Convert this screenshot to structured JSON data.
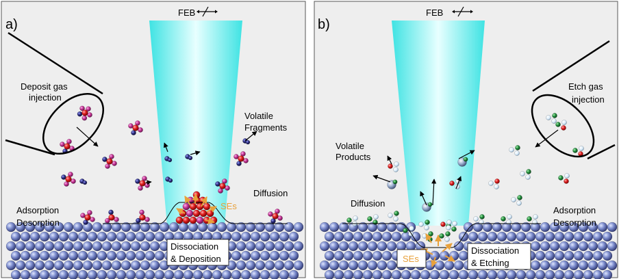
{
  "colors": {
    "panel_bg": "#eeeeee",
    "beam_edge": "#40e6e6",
    "beam_center": "#e6ffff",
    "substrate_ball": "#6a7bb8",
    "red_atom": "#d01818",
    "magenta_atom": "#c0308e",
    "navy_atom": "#2a2a7a",
    "green_atom": "#1f8a3a",
    "white_atom": "#e8f4ff",
    "grey_atom": "#8fa8c8",
    "ses_color": "#e8a13c"
  },
  "panel_a": {
    "letter": "a)",
    "feb_label": "FEB",
    "nozzle_label": [
      "Deposit gas",
      "injection"
    ],
    "volatile_label": [
      "Volatile",
      "Fragments"
    ],
    "diffusion_label": "Diffusion",
    "ses_label": "SEs",
    "adsorption_label": [
      "Adsorption",
      "Desorption"
    ],
    "process_label": [
      "Dissociation",
      "& Deposition"
    ]
  },
  "panel_b": {
    "letter": "b)",
    "feb_label": "FEB",
    "nozzle_label": [
      "Etch gas",
      "injection"
    ],
    "volatile_label": [
      "Volatile",
      "Products"
    ],
    "diffusion_label": "Diffusion",
    "ses_label": "SEs",
    "adsorption_label": [
      "Adsorption",
      "Desorption"
    ],
    "process_label": [
      "Dissociation",
      "& Etching"
    ]
  }
}
